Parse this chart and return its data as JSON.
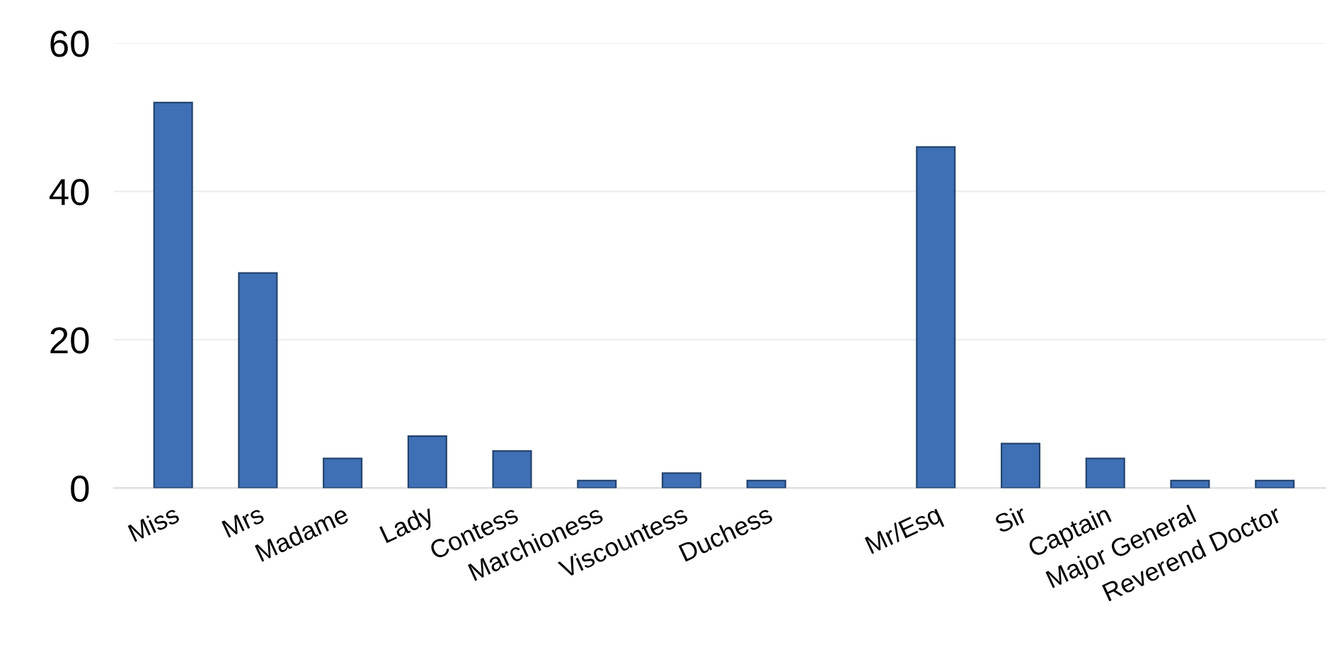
{
  "chart_data": {
    "type": "bar",
    "categories": [
      "Miss",
      "Mrs",
      "Madame",
      "Lady",
      "Contess",
      "Marchioness",
      "Viscountess",
      "Duchess",
      null,
      "Mr/Esq",
      "Sir",
      "Captain",
      "Major General",
      "Reverend Doctor"
    ],
    "values": [
      52,
      29,
      4,
      7,
      5,
      1,
      2,
      1,
      null,
      46,
      6,
      4,
      1,
      1
    ],
    "color": "#3f6fb5",
    "ylim": [
      0,
      60
    ],
    "yticks": [
      0,
      20,
      40,
      60
    ],
    "grid": "y"
  }
}
